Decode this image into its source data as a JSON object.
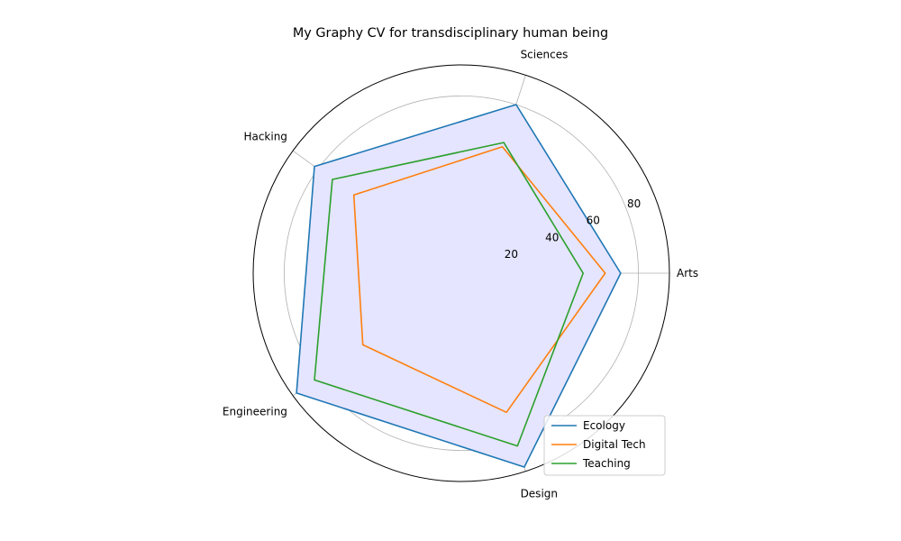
{
  "chart_data": {
    "type": "radar",
    "title": "My Graphy CV for transdisciplinary human being",
    "axes": [
      "Arts",
      "Sciences",
      "Hacking",
      "Engineering",
      "Design"
    ],
    "r_ticks": [
      20,
      40,
      60,
      80
    ],
    "r_max": 94,
    "grid": true,
    "legend_position": "lower-right",
    "series": [
      {
        "name": "Ecology",
        "values": [
          72,
          80,
          82,
          92,
          92
        ],
        "color": "#1f77b4"
      },
      {
        "name": "Digital Tech",
        "values": [
          65,
          60,
          60,
          55,
          66
        ],
        "color": "#ff7f0e"
      },
      {
        "name": "Teaching",
        "values": [
          55,
          62,
          72,
          82,
          82
        ],
        "color": "#2ca02c"
      }
    ],
    "fill_color": "#e5e5ff"
  }
}
